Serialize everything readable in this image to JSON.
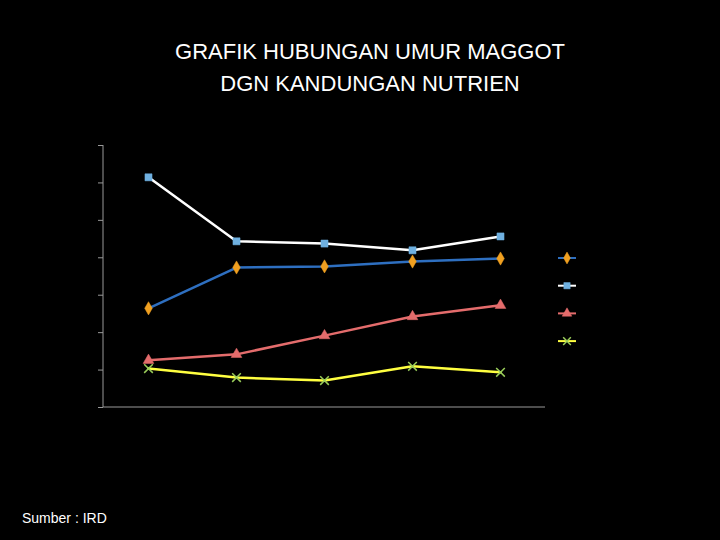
{
  "chart_data": {
    "type": "line",
    "title": "GRAFIK HUBUNGAN UMUR MAGGOT\nDGN KANDUNGAN NUTRIEN",
    "annotations": [
      "Sumber : IRD"
    ],
    "categories": [
      null,
      null,
      null,
      null,
      null
    ],
    "series": [
      {
        "color": "#2e6fc0",
        "marker": "diamond",
        "values": [
          26.5,
          37.4,
          37.7,
          39.0,
          39.8
        ]
      },
      {
        "color": "#ffffff",
        "marker": "square",
        "values": [
          61.5,
          44.4,
          43.8,
          42.0,
          45.7
        ]
      },
      {
        "color": "#e46c6c",
        "marker": "triangle",
        "values": [
          12.6,
          14.2,
          19.2,
          24.3,
          27.3
        ]
      },
      {
        "color": "#ffff40",
        "marker": "x",
        "values": [
          10.4,
          8.0,
          7.2,
          11.0,
          9.4
        ]
      }
    ],
    "ylim": [
      0,
      70
    ],
    "yticks": [
      0,
      10,
      20,
      30,
      40,
      50,
      60,
      70
    ],
    "grid": false,
    "tick_labels": false,
    "legend": "right"
  }
}
